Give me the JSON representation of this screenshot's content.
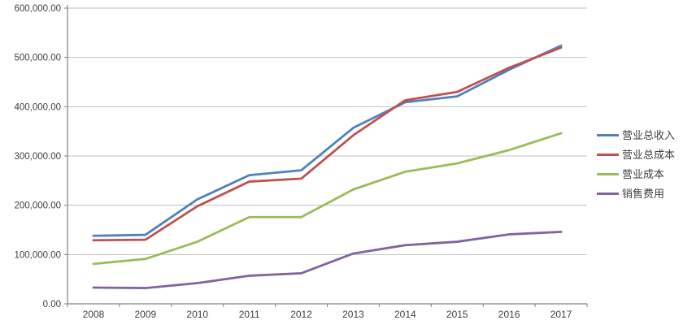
{
  "chart_data": {
    "type": "line",
    "title": "",
    "xlabel": "",
    "ylabel": "",
    "x": [
      "2008",
      "2009",
      "2010",
      "2011",
      "2012",
      "2013",
      "2014",
      "2015",
      "2016",
      "2017"
    ],
    "series": [
      {
        "id": "total-revenue",
        "name": "营业总收入",
        "color": "#4F81BD",
        "values": [
          138000,
          140000,
          212000,
          261000,
          271000,
          357000,
          409000,
          421000,
          475000,
          524000
        ]
      },
      {
        "id": "total-cost",
        "name": "营业总成本",
        "color": "#C0504D",
        "values": [
          129000,
          130000,
          198000,
          248000,
          254000,
          342000,
          413000,
          430000,
          479000,
          520000
        ]
      },
      {
        "id": "operating-cost",
        "name": "营业成本",
        "color": "#9BBB59",
        "values": [
          81000,
          91000,
          126000,
          176000,
          176000,
          232000,
          268000,
          285000,
          312000,
          346000
        ]
      },
      {
        "id": "selling-expenses",
        "name": "销售费用",
        "color": "#8064A2",
        "values": [
          33000,
          32000,
          42000,
          57000,
          62000,
          102000,
          119000,
          126000,
          141000,
          146000
        ]
      }
    ],
    "ylim": [
      0,
      600000
    ],
    "ytick_step": 100000,
    "ytick_labels": [
      "0.00",
      "100,000.00",
      "200,000.00",
      "300,000.00",
      "400,000.00",
      "500,000.00",
      "600,000.00"
    ],
    "grid": true,
    "legend_position": "right"
  },
  "colors": {
    "background": "#FFFFFF",
    "gridline": "#BFBFBF",
    "axis": "#808080",
    "tick": "#808080",
    "label_text": "#3F3F3F"
  }
}
